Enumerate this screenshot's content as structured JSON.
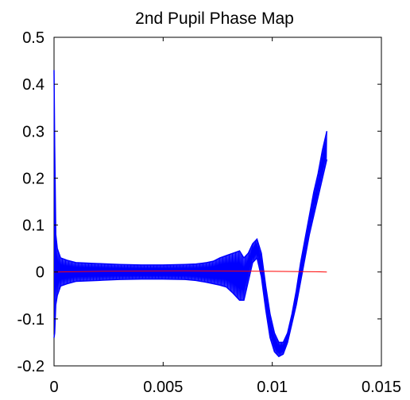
{
  "chart_data": {
    "type": "line",
    "title": "2nd Pupil Phase Map",
    "xlabel": "",
    "ylabel": "",
    "xlim": [
      0,
      0.015
    ],
    "ylim": [
      -0.2,
      0.5
    ],
    "x_ticks": [
      0,
      0.005,
      0.01,
      0.015
    ],
    "x_tick_labels": [
      "0",
      "0.005",
      "0.01",
      "0.015"
    ],
    "y_ticks": [
      -0.2,
      -0.1,
      0,
      0.1,
      0.2,
      0.3,
      0.4,
      0.5
    ],
    "y_tick_labels": [
      "-0.2",
      "-0.1",
      "0",
      "0.1",
      "0.2",
      "0.3",
      "0.4",
      "0.5"
    ],
    "grid": false,
    "legend": "none",
    "series": [
      {
        "color": "#0000ff",
        "style": "dense oscillating band",
        "envelope": {
          "x": [
            0,
            3e-05,
            8e-05,
            0.00015,
            0.0003,
            0.0006,
            0.001,
            0.002,
            0.003,
            0.004,
            0.005,
            0.006,
            0.0065,
            0.007,
            0.0073,
            0.0076,
            0.0079,
            0.0082,
            0.0085,
            0.0087,
            0.0089,
            0.0091,
            0.0093,
            0.0095,
            0.0097,
            0.0099,
            0.0101,
            0.0103,
            0.0105,
            0.0107,
            0.0109,
            0.0111,
            0.0113,
            0.0115,
            0.0117,
            0.0119,
            0.0121,
            0.0123,
            0.0125
          ],
          "upper": [
            0.43,
            0.27,
            0.08,
            0.05,
            0.03,
            0.025,
            0.02,
            0.018,
            0.016,
            0.015,
            0.015,
            0.016,
            0.017,
            0.02,
            0.023,
            0.03,
            0.035,
            0.04,
            0.045,
            0.03,
            0.04,
            0.06,
            0.07,
            0.04,
            -0.03,
            -0.09,
            -0.13,
            -0.15,
            -0.15,
            -0.13,
            -0.09,
            -0.04,
            0.02,
            0.07,
            0.12,
            0.17,
            0.21,
            0.26,
            0.3
          ],
          "lower": [
            -0.14,
            -0.13,
            -0.07,
            -0.05,
            -0.03,
            -0.025,
            -0.02,
            -0.018,
            -0.016,
            -0.015,
            -0.015,
            -0.016,
            -0.018,
            -0.022,
            -0.025,
            -0.028,
            -0.032,
            -0.045,
            -0.06,
            -0.06,
            -0.02,
            0.02,
            0.03,
            -0.01,
            -0.08,
            -0.14,
            -0.17,
            -0.18,
            -0.175,
            -0.15,
            -0.11,
            -0.07,
            -0.02,
            0.03,
            0.08,
            0.12,
            0.16,
            0.2,
            0.24
          ]
        }
      },
      {
        "color": "#ff0000",
        "style": "thin line",
        "x": [
          0,
          0.002,
          0.004,
          0.006,
          0.008,
          0.01,
          0.012,
          0.0125
        ],
        "y": [
          0.0,
          0.0015,
          0.002,
          0.0025,
          0.002,
          0.0015,
          0.0005,
          0.0
        ]
      }
    ]
  }
}
